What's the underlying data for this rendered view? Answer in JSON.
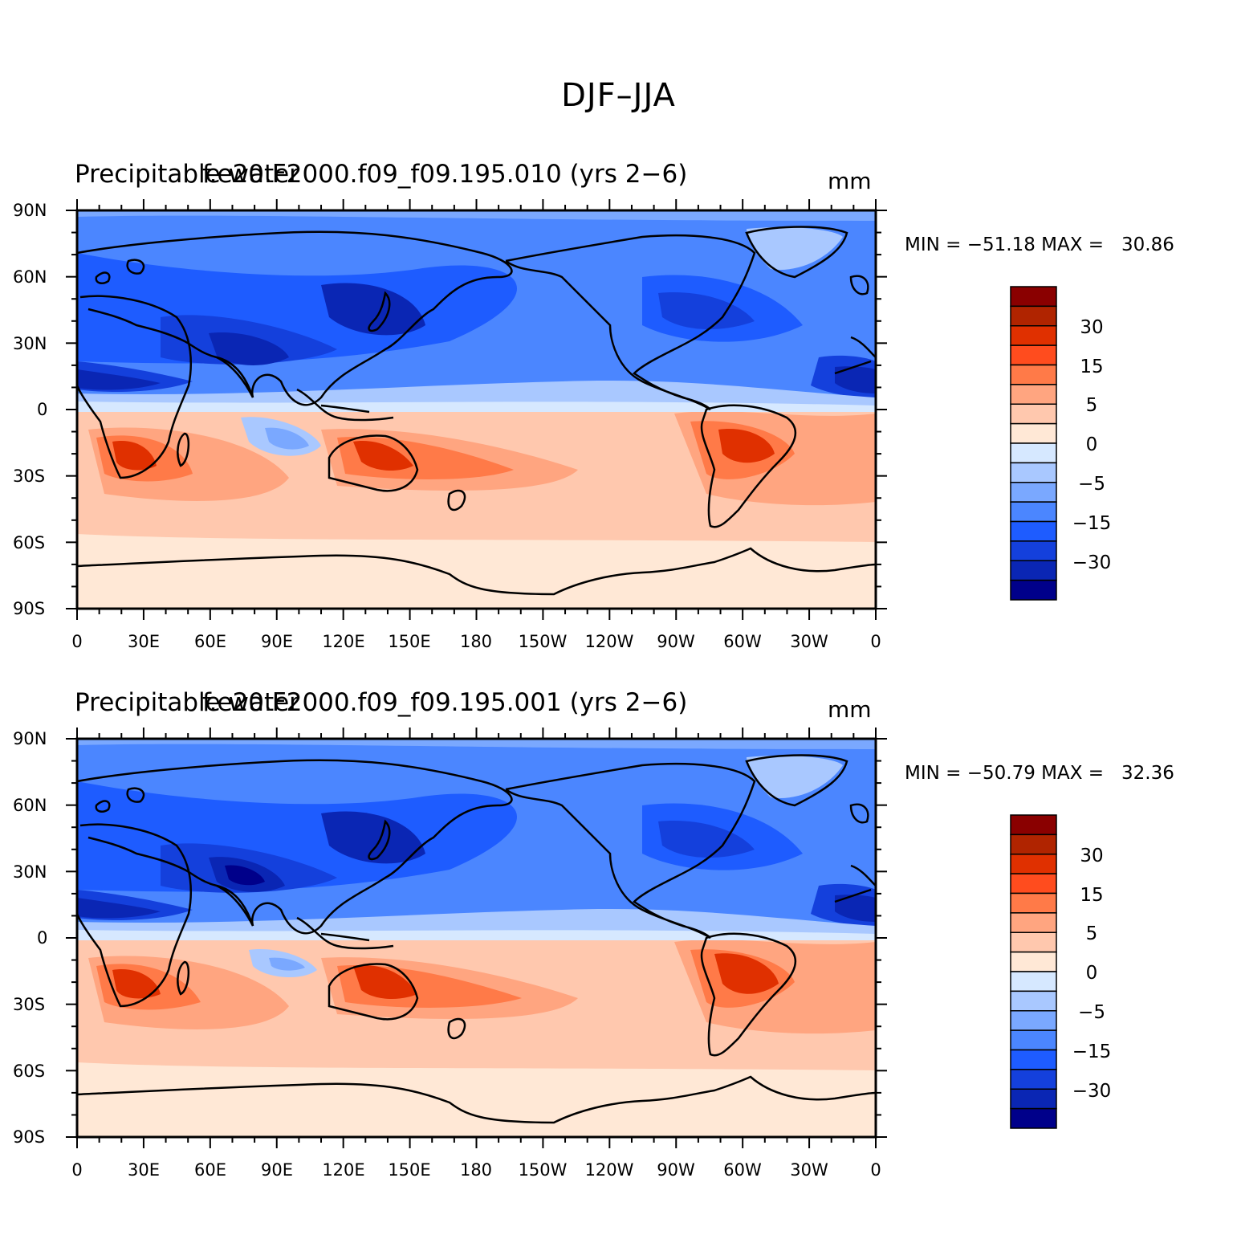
{
  "figure": {
    "title": "DJF–JJA"
  },
  "axes": {
    "lat_labels": [
      "90N",
      "60N",
      "30N",
      "0",
      "30S",
      "60S",
      "90S"
    ],
    "lon_labels": [
      "0",
      "30E",
      "60E",
      "90E",
      "120E",
      "150E",
      "180",
      "150W",
      "120W",
      "90W",
      "60W",
      "30W",
      "0"
    ]
  },
  "colorbar": {
    "labels": [
      "30",
      "15",
      "5",
      "0",
      "−5",
      "−15",
      "−30"
    ],
    "levels": [
      -40,
      -30,
      -20,
      -15,
      -10,
      -5,
      0,
      5,
      10,
      15,
      20,
      30,
      40
    ],
    "colors": [
      "#00008a",
      "#0a26b4",
      "#1440dc",
      "#1e5cff",
      "#4b86ff",
      "#7aa8ff",
      "#a9c8ff",
      "#d6e8ff",
      "#ffe8d6",
      "#ffc8ae",
      "#ffa580",
      "#ff7a48",
      "#ff4c1e",
      "#e03000",
      "#b02400",
      "#8a0000"
    ]
  },
  "panels": [
    {
      "left_title": "Precipitable water",
      "center_title": "f.e20.F2000.f09_f09.195.010 (yrs 2−6)",
      "units": "mm",
      "stats": "MIN = −51.18 MAX =   30.86",
      "min": -51.18,
      "max": 30.86
    },
    {
      "left_title": "Precipitable water",
      "center_title": "f.e20.F2000.f09_f09.195.001 (yrs 2−6)",
      "units": "mm",
      "stats": "MIN = −50.79 MAX =   32.36",
      "min": -50.79,
      "max": 32.36
    }
  ]
}
